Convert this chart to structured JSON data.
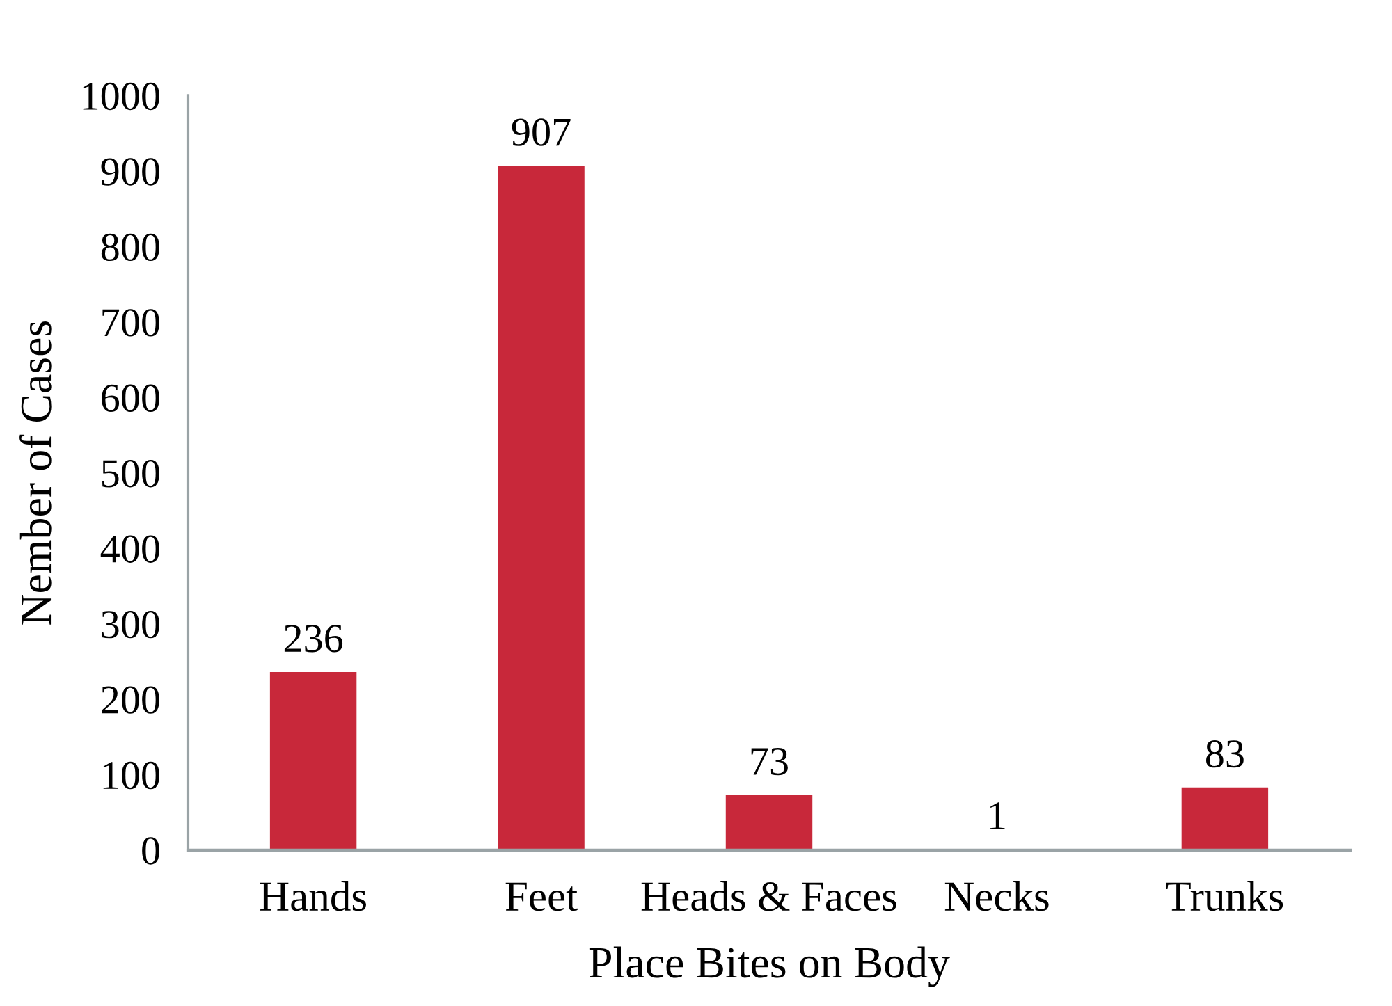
{
  "chart_data": {
    "type": "bar",
    "xlabel": "Place Bites on Body",
    "ylabel": "Nember of Cases",
    "categories": [
      "Hands",
      "Feet",
      "Heads & Faces",
      "Necks",
      "Trunks"
    ],
    "values": [
      236,
      907,
      73,
      1,
      83
    ],
    "color": "#c8283a",
    "ylim": [
      0,
      1000
    ],
    "yticks": [
      0,
      100,
      200,
      300,
      400,
      500,
      600,
      700,
      800,
      900,
      1000
    ],
    "grid": false,
    "data_labels": true
  }
}
